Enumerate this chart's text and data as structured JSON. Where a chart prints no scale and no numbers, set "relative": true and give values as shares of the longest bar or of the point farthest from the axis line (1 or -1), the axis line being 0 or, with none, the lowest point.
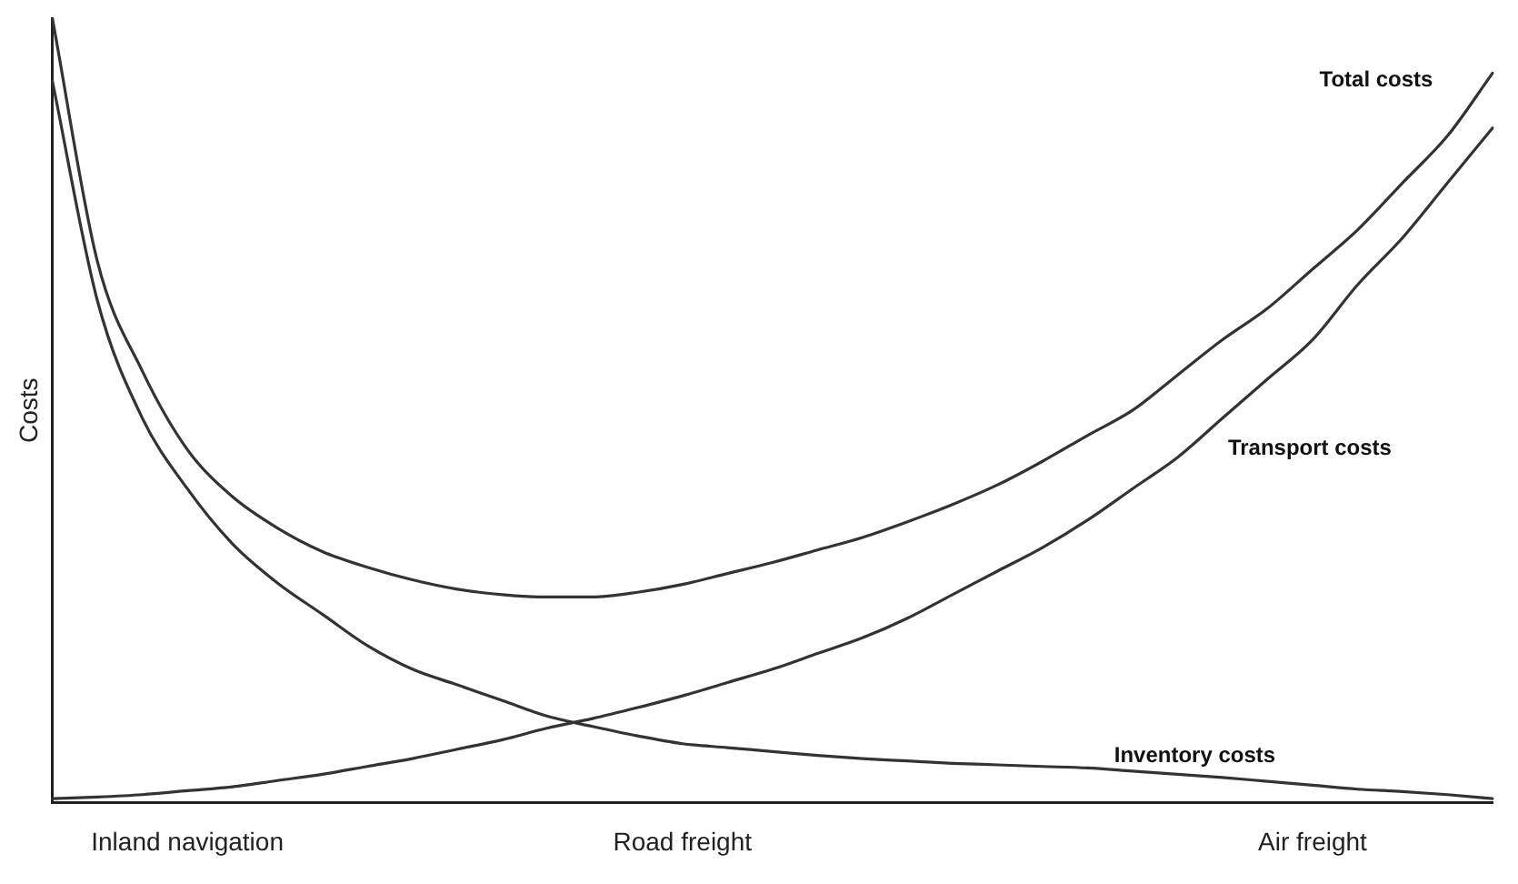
{
  "chart_data": {
    "type": "line",
    "relative": true,
    "ylabel": "Costs",
    "grid": false,
    "legend": false,
    "marker": "none",
    "line_style": "solid",
    "categories": [
      null,
      null,
      null,
      "Inland navigation",
      null,
      null,
      null,
      null,
      null,
      null,
      null,
      null,
      null,
      null,
      "Road freight",
      null,
      null,
      null,
      null,
      null,
      null,
      null,
      null,
      null,
      null,
      null,
      null,
      null,
      "Air freight",
      null,
      null,
      null,
      null
    ],
    "series": [
      {
        "name": "Total costs",
        "color": "#333333",
        "values": [
          1,
          0.69,
          0.55,
          0.45,
          0.39,
          0.35,
          0.32,
          0.3,
          0.284,
          0.272,
          0.265,
          0.262,
          0.262,
          0.268,
          0.278,
          0.292,
          0.306,
          0.322,
          0.338,
          0.358,
          0.38,
          0.405,
          0.435,
          0.468,
          0.5,
          0.545,
          0.59,
          0.63,
          0.68,
          0.73,
          0.79,
          0.85,
          0.93
        ]
      },
      {
        "name": "Transport costs",
        "color": "#333333",
        "values": [
          0.005,
          0.007,
          0.01,
          0.015,
          0.02,
          0.028,
          0.036,
          0.046,
          0.056,
          0.068,
          0.08,
          0.095,
          0.107,
          0.121,
          0.136,
          0.153,
          0.17,
          0.19,
          0.21,
          0.235,
          0.265,
          0.295,
          0.325,
          0.36,
          0.4,
          0.44,
          0.49,
          0.54,
          0.59,
          0.66,
          0.72,
          0.79,
          0.86
        ]
      },
      {
        "name": "Inventory costs",
        "color": "#333333",
        "values": [
          0.92,
          0.64,
          0.49,
          0.4,
          0.33,
          0.28,
          0.24,
          0.2,
          0.17,
          0.15,
          0.13,
          0.11,
          0.097,
          0.085,
          0.075,
          0.07,
          0.065,
          0.06,
          0.056,
          0.053,
          0.05,
          0.048,
          0.046,
          0.044,
          0.04,
          0.036,
          0.032,
          0.027,
          0.022,
          0.017,
          0.014,
          0.01,
          0.005
        ]
      }
    ]
  }
}
